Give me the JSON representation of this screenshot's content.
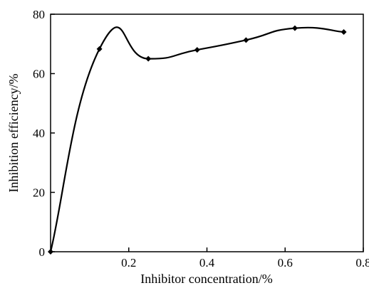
{
  "chart_data": {
    "type": "line",
    "title": "",
    "xlabel": "Inhibitor concentration/%",
    "ylabel": "Inhibition efficiency/%",
    "xlim": [
      0,
      0.8
    ],
    "ylim": [
      0,
      80
    ],
    "x_ticks": [
      0.2,
      0.4,
      0.6,
      0.8
    ],
    "x_tick_labels": [
      "0.2",
      "0.4",
      "0.6",
      "0.8"
    ],
    "y_ticks": [
      0,
      20,
      40,
      60,
      80
    ],
    "y_tick_labels": [
      "0",
      "20",
      "40",
      "60",
      "80"
    ],
    "grid": false,
    "legend": "none",
    "line_color": "#000000",
    "marker": "diamond",
    "series": [
      {
        "x": [
          0,
          0.125,
          0.25,
          0.375,
          0.5,
          0.625,
          0.75
        ],
        "y": [
          0,
          68.3,
          65.0,
          68.0,
          71.3,
          75.3,
          74.0
        ]
      }
    ]
  }
}
